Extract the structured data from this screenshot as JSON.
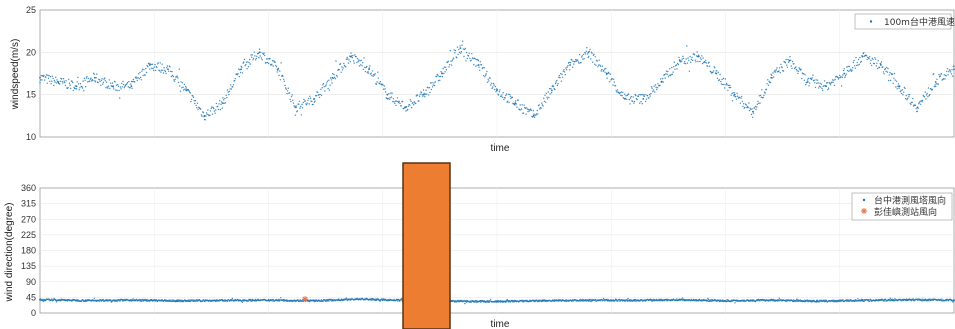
{
  "chart_data": [
    {
      "type": "scatter",
      "xlabel": "time",
      "ylabel": "windspeed(m/s)",
      "ylim": [
        10,
        25
      ],
      "yticks": [
        10,
        15,
        20,
        25
      ],
      "grid": true,
      "legend_position": "top-right",
      "series": [
        {
          "name": "100m台中港風速",
          "color": "#1f77b4",
          "marker": "dot",
          "x": [
            0.0,
            0.02,
            0.04,
            0.06,
            0.08,
            0.1,
            0.12,
            0.14,
            0.16,
            0.18,
            0.2,
            0.22,
            0.24,
            0.26,
            0.28,
            0.3,
            0.32,
            0.34,
            0.36,
            0.38,
            0.4,
            0.42,
            0.44,
            0.46,
            0.48,
            0.5,
            0.52,
            0.54,
            0.56,
            0.58,
            0.6,
            0.62,
            0.64,
            0.66,
            0.68,
            0.7,
            0.72,
            0.74,
            0.76,
            0.78,
            0.8,
            0.82,
            0.84,
            0.86,
            0.88,
            0.9,
            0.92,
            0.94,
            0.96,
            0.98,
            1.0
          ],
          "y": [
            17.0,
            16.5,
            16.0,
            17.0,
            16.0,
            16.0,
            18.5,
            18.0,
            15.5,
            12.5,
            14.0,
            18.0,
            20.0,
            18.0,
            13.5,
            14.5,
            17.0,
            19.5,
            18.0,
            15.0,
            13.5,
            15.0,
            17.5,
            20.5,
            18.5,
            15.5,
            14.0,
            12.5,
            15.5,
            18.5,
            20.0,
            17.5,
            14.5,
            14.5,
            16.5,
            19.0,
            19.5,
            17.5,
            15.0,
            13.0,
            17.0,
            19.0,
            16.5,
            16.0,
            17.5,
            19.5,
            18.5,
            16.0,
            13.5,
            16.5,
            18.0
          ]
        }
      ]
    },
    {
      "type": "scatter",
      "xlabel": "time",
      "ylabel": "wind direction(degree)",
      "ylim": [
        0,
        360
      ],
      "yticks": [
        0,
        45,
        90,
        135,
        180,
        225,
        270,
        315,
        360
      ],
      "grid": true,
      "legend_position": "top-right",
      "series": [
        {
          "name": "台中港測風塔風向",
          "color": "#1f77b4",
          "marker": "dot",
          "x": [
            0.0,
            0.05,
            0.1,
            0.15,
            0.2,
            0.25,
            0.3,
            0.35,
            0.4,
            0.45,
            0.5,
            0.55,
            0.6,
            0.65,
            0.7,
            0.75,
            0.8,
            0.85,
            0.9,
            0.95,
            1.0
          ],
          "y": [
            38,
            36,
            37,
            35,
            36,
            37,
            35,
            40,
            36,
            34,
            33,
            35,
            37,
            36,
            38,
            35,
            37,
            34,
            36,
            38,
            37
          ]
        },
        {
          "name": "彭佳嶼測站風向",
          "color": "#e8764a",
          "marker": "asterisk",
          "x": [
            0.29
          ],
          "y": [
            40
          ]
        }
      ]
    }
  ],
  "overlay": {
    "color": "#ed7d31",
    "border": "#5a3010"
  }
}
